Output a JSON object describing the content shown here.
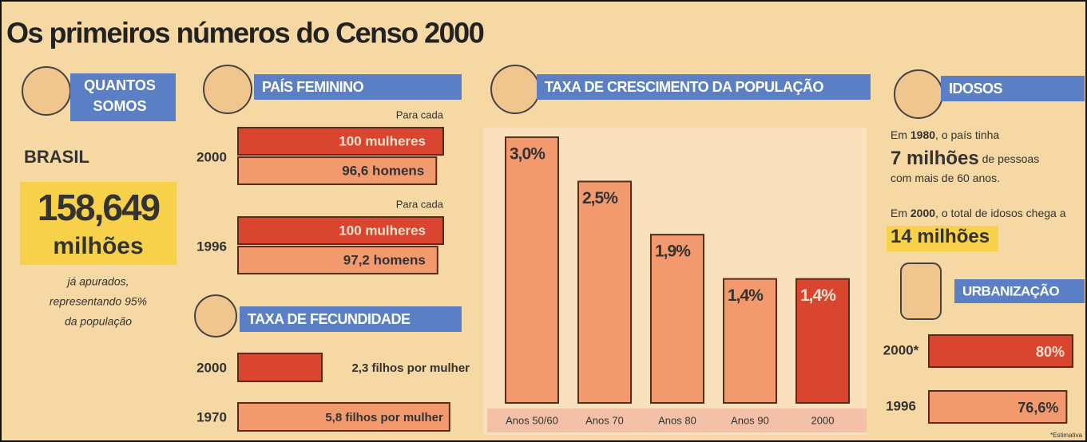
{
  "title": "Os primeiros números do Censo 2000",
  "quantos_somos": {
    "heading": [
      "QUANTOS",
      "SOMOS"
    ],
    "country": "BRASIL",
    "number": "158,649",
    "unit": "milhões",
    "note": [
      "já apurados,",
      "representando 95%",
      "da população"
    ]
  },
  "idosos": {
    "heading": "IDOSOS",
    "lines": [
      [
        {
          "text": "Em ",
          "bold": false
        },
        {
          "text": "1980",
          "bold": true
        },
        {
          "text": ", o país tinha",
          "bold": false
        }
      ],
      [
        {
          "text": "7 milhões",
          "bold": true
        },
        {
          "text": " de pessoas",
          "bold": false
        }
      ],
      [
        {
          "text": "com mais de 60 anos.",
          "bold": false
        }
      ],
      [
        {
          "text": "Em ",
          "bold": false
        },
        {
          "text": "2000",
          "bold": true
        },
        {
          "text": ", o total de idosos chega a",
          "bold": false
        }
      ],
      [
        {
          "text": "14 milhões",
          "bold": true
        }
      ]
    ]
  },
  "chart_data": [
    {
      "type": "bar",
      "orientation": "horizontal",
      "title": "PAÍS FEMININO",
      "caption": "Para cada",
      "categories": [
        "2000",
        "1996"
      ],
      "series": [
        {
          "color": "#d9452f",
          "values": [
            100,
            100
          ],
          "value_labels": [
            "100 mulheres",
            "100 mulheres"
          ]
        },
        {
          "color": "#f29a6e",
          "values": [
            96.6,
            97.2
          ],
          "value_labels": [
            "96,6 homens",
            "97,2 homens"
          ]
        }
      ],
      "xlim": [
        0,
        100
      ]
    },
    {
      "type": "bar",
      "orientation": "horizontal",
      "title": "TAXA DE FECUNDIDADE",
      "categories": [
        "2000",
        "1970"
      ],
      "values": [
        2.3,
        5.8
      ],
      "value_labels": [
        "2,3 filhos por mulher",
        "5,8 filhos por mulher"
      ],
      "colors": [
        "#d9452f",
        "#f29a6e"
      ],
      "xlim": [
        0,
        6
      ]
    },
    {
      "type": "bar",
      "orientation": "vertical",
      "title": "TAXA DE CRESCIMENTO DA POPULAÇÃO",
      "categories": [
        "Anos 50/60",
        "Anos 70",
        "Anos 80",
        "Anos 90",
        "2000"
      ],
      "values": [
        3.0,
        2.5,
        1.9,
        1.4,
        1.4
      ],
      "value_labels": [
        "3,0%",
        "2,5%",
        "1,9%",
        "1,4%",
        "1,4%"
      ],
      "colors": [
        "#f29a6e",
        "#f29a6e",
        "#f29a6e",
        "#f29a6e",
        "#d9452f"
      ],
      "ylim": [
        0,
        3
      ]
    },
    {
      "type": "bar",
      "orientation": "horizontal",
      "title": "URBANIZAÇÃO",
      "categories": [
        "2000*",
        "1996"
      ],
      "values": [
        80,
        76.6
      ],
      "value_labels": [
        "80%",
        "76,6%"
      ],
      "colors": [
        "#d9452f",
        "#f29a6e"
      ],
      "xlim": [
        0,
        100
      ],
      "footnote": "*Estimativa"
    }
  ]
}
